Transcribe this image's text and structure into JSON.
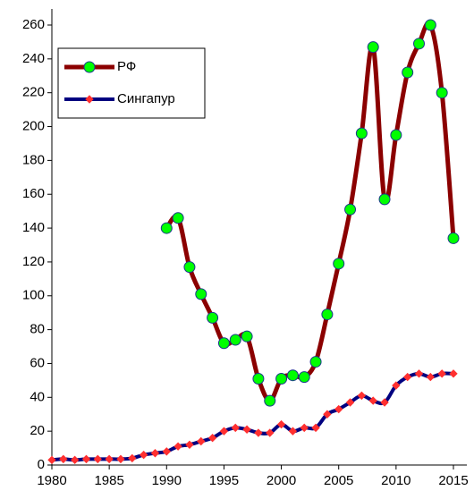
{
  "chart_data": {
    "type": "line",
    "x": [
      1980,
      1981,
      1982,
      1983,
      1984,
      1985,
      1986,
      1987,
      1988,
      1989,
      1990,
      1991,
      1992,
      1993,
      1994,
      1995,
      1996,
      1997,
      1998,
      1999,
      2000,
      2001,
      2002,
      2003,
      2004,
      2005,
      2006,
      2007,
      2008,
      2009,
      2010,
      2011,
      2012,
      2013,
      2014,
      2015
    ],
    "series": [
      {
        "name": "РФ",
        "color": "#8b0000",
        "marker_color": "#00ff00",
        "values": [
          null,
          null,
          null,
          null,
          null,
          null,
          null,
          null,
          null,
          null,
          140,
          146,
          117,
          101,
          87,
          72,
          74,
          76,
          51,
          38,
          51,
          53,
          52,
          61,
          89,
          119,
          151,
          196,
          247,
          157,
          195,
          232,
          249,
          260,
          220,
          134
        ]
      },
      {
        "name": "Сингапур",
        "color": "#000080",
        "marker_color": "#ff3030",
        "values": [
          3,
          3.5,
          3,
          3.5,
          3.5,
          3.5,
          3.5,
          4,
          6,
          7,
          8,
          11,
          12,
          14,
          16,
          20,
          22,
          21,
          19,
          19,
          24,
          20,
          22,
          22,
          30,
          33,
          37,
          41,
          38,
          37,
          47,
          52,
          54,
          52,
          54,
          54
        ]
      }
    ],
    "xlim": [
      1980,
      2015
    ],
    "xticks": [
      1980,
      1985,
      1990,
      1995,
      2000,
      2005,
      2010,
      2015
    ],
    "ylim": [
      0,
      260
    ],
    "yticks": [
      0,
      20,
      40,
      60,
      80,
      100,
      120,
      140,
      160,
      180,
      200,
      220,
      240,
      260
    ],
    "legend": "upper left"
  }
}
